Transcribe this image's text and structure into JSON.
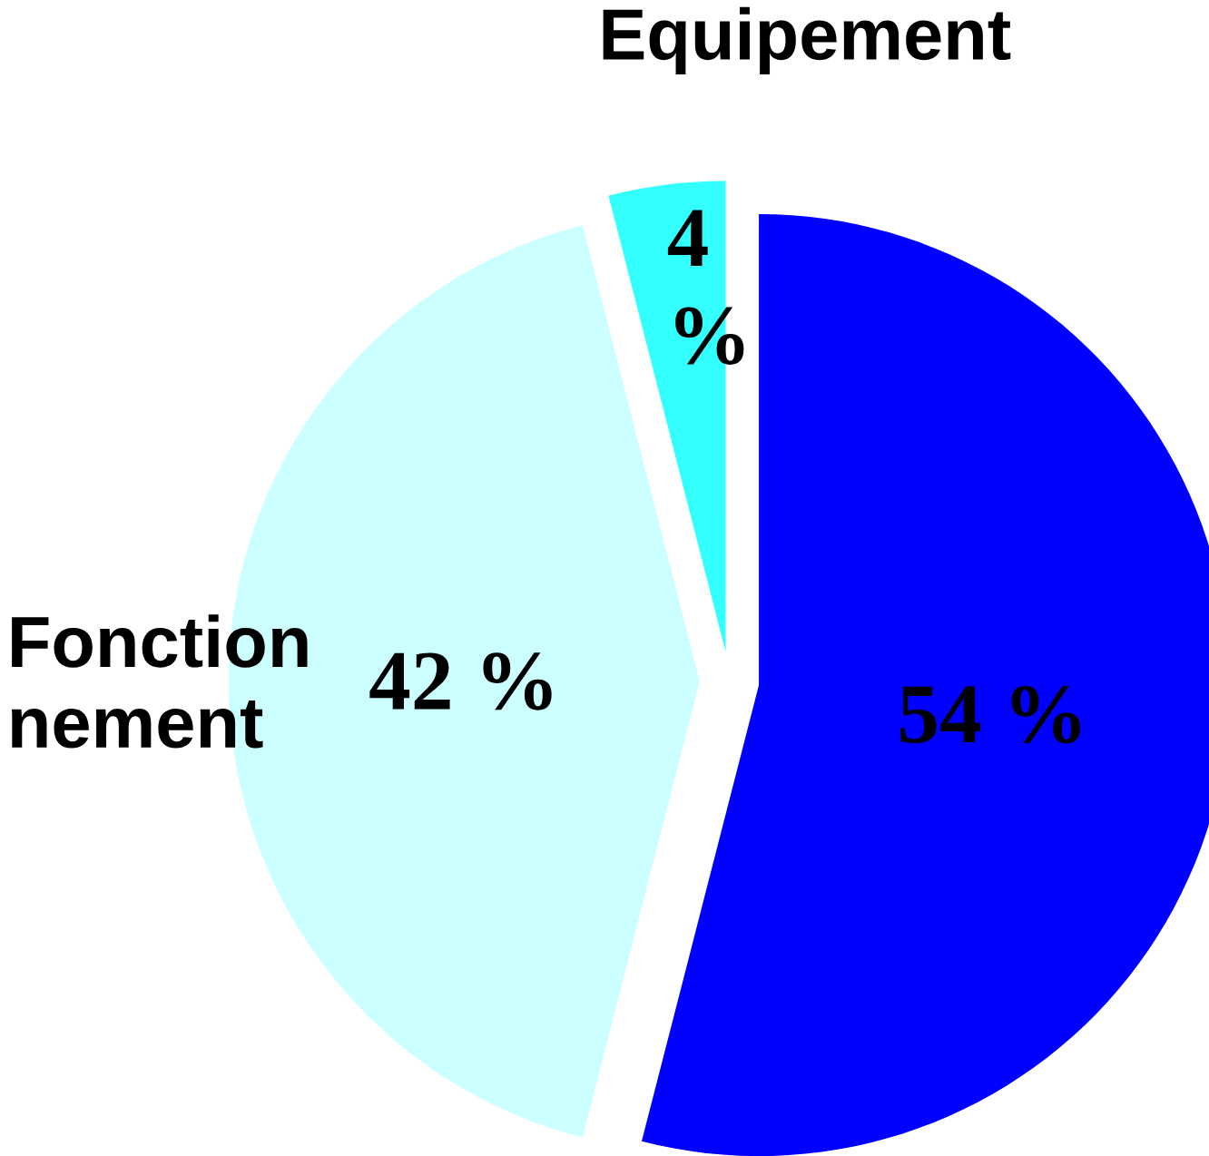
{
  "chart_data": {
    "type": "pie",
    "categories": [
      null,
      "Fonction nement",
      "Equipement"
    ],
    "values": [
      54,
      42,
      4
    ],
    "colors": [
      "#0000ff",
      "#ccffff",
      "#33ffff"
    ],
    "value_labels": [
      "54 %",
      "42 %",
      "4 %"
    ]
  }
}
